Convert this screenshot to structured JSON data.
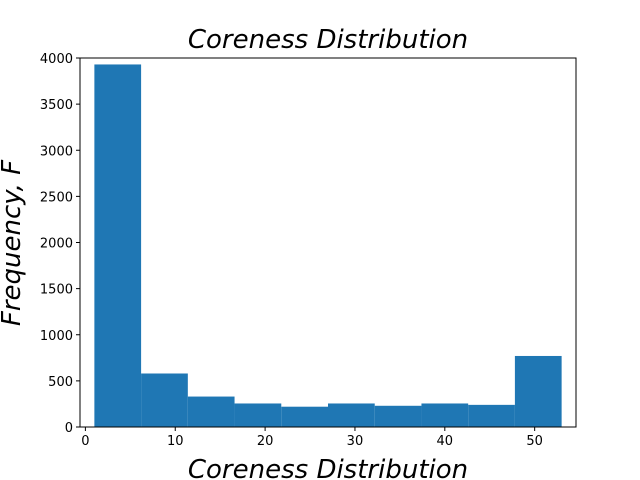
{
  "chart_data": {
    "type": "bar",
    "title": "Coreness Distribution",
    "xlabel": "Coreness Distribution",
    "ylabel": "Frequency, F",
    "bin_edges": [
      1,
      6.2,
      11.4,
      16.6,
      21.8,
      27,
      32.2,
      37.4,
      42.6,
      47.8,
      53
    ],
    "values": [
      3930,
      580,
      330,
      255,
      220,
      255,
      230,
      255,
      240,
      770
    ],
    "xlim": [
      -0.6,
      54.6
    ],
    "ylim": [
      0,
      4000
    ],
    "xticks": [
      0,
      10,
      20,
      30,
      40,
      50
    ],
    "yticks": [
      0,
      500,
      1000,
      1500,
      2000,
      2500,
      3000,
      3500,
      4000
    ],
    "bar_color": "#1f77b4",
    "grid": false,
    "legend": "none"
  }
}
